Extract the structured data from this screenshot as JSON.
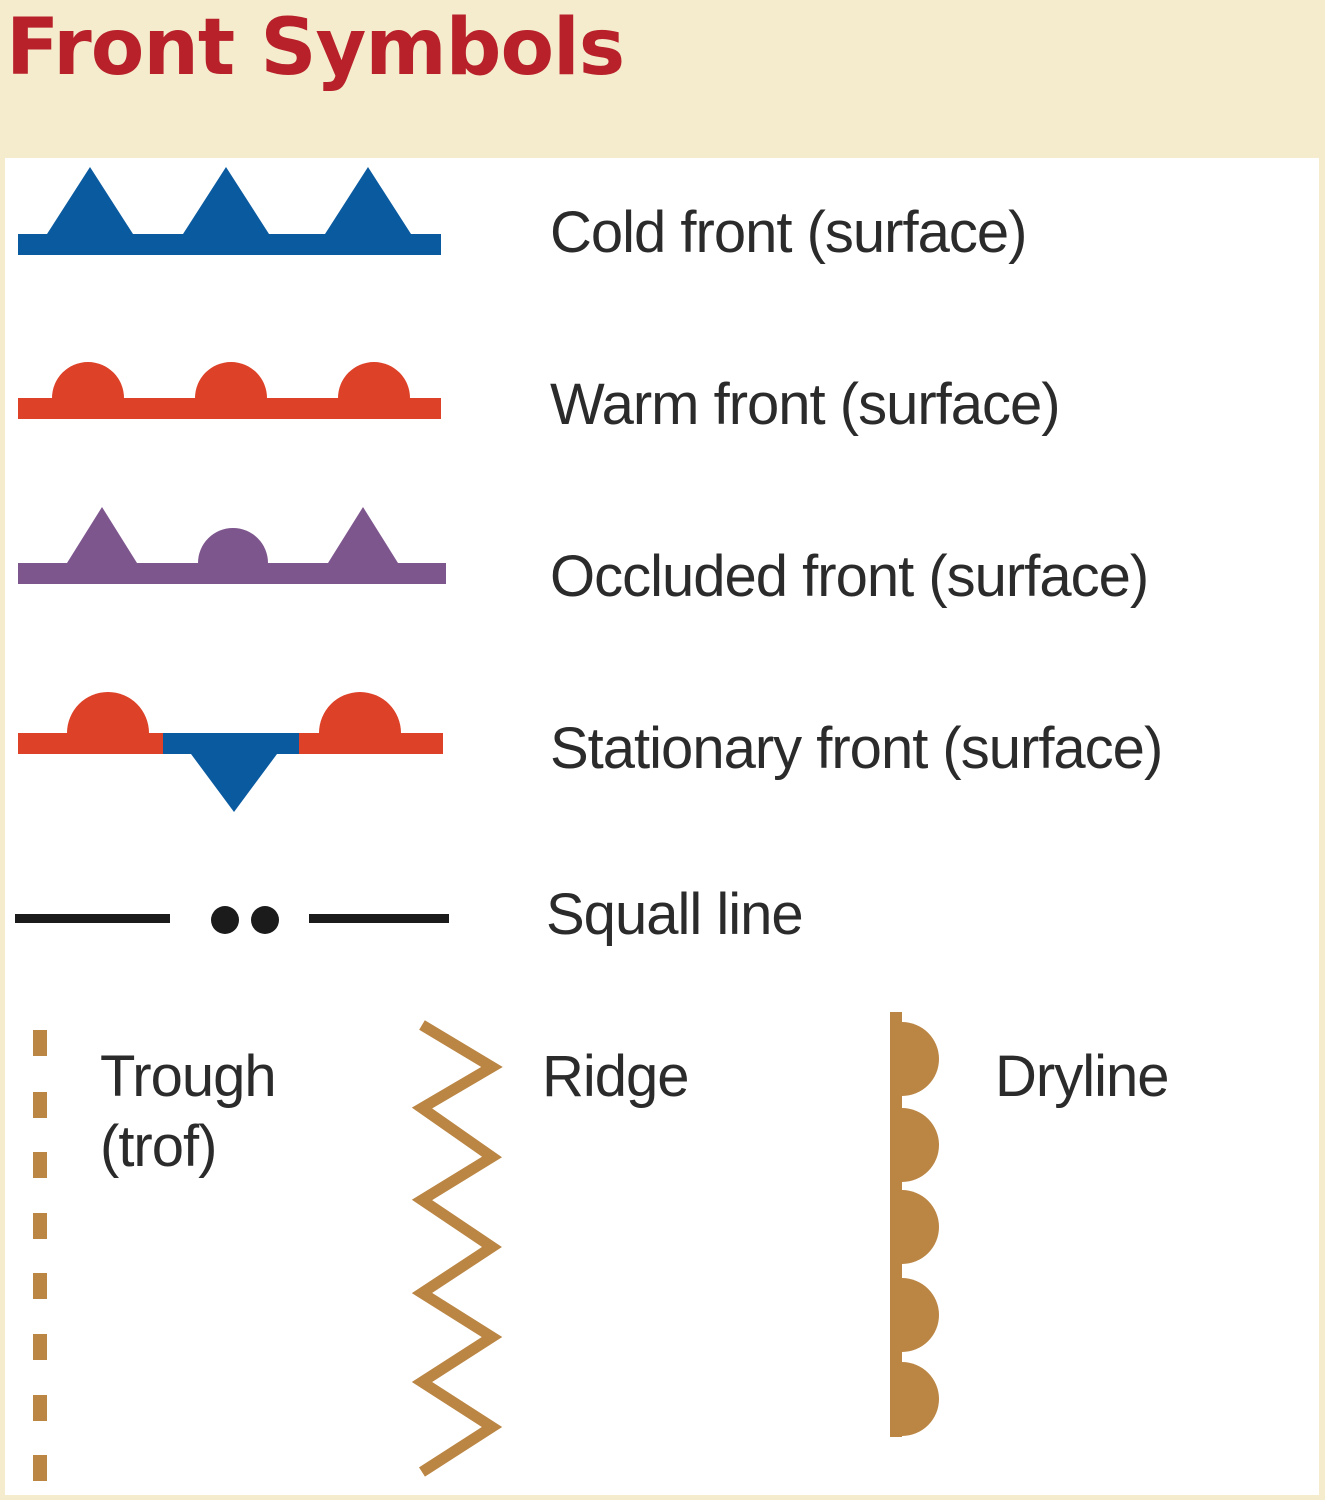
{
  "title": "Front Symbols",
  "colors": {
    "background": "#f4eccd",
    "panel": "#ffffff",
    "title": "#b8202a",
    "cold": "#0a5aa0",
    "warm": "#dd4127",
    "occluded": "#7e568e",
    "squall": "#1b1b1b",
    "tan": "#bb8543",
    "label": "#2b2b2b"
  },
  "legend": {
    "cold_front": {
      "label": "Cold front (surface)",
      "symbol": "blue line with triangles"
    },
    "warm_front": {
      "label": "Warm front (surface)",
      "symbol": "red line with semicircles"
    },
    "occluded_front": {
      "label": "Occluded front (surface)",
      "symbol": "purple line with alternating triangles and semicircles"
    },
    "stationary_front": {
      "label": "Stationary front (surface)",
      "symbol": "alternating red semicircles and blue triangle"
    },
    "squall_line": {
      "label": "Squall line",
      "symbol": "black dash, two dots, dash"
    },
    "trough": {
      "label_line1": "Trough",
      "label_line2": "(trof)",
      "symbol": "tan dashed vertical line"
    },
    "ridge": {
      "label": "Ridge",
      "symbol": "tan zigzag"
    },
    "dryline": {
      "label": "Dryline",
      "symbol": "tan vertical line with semicircles"
    }
  }
}
